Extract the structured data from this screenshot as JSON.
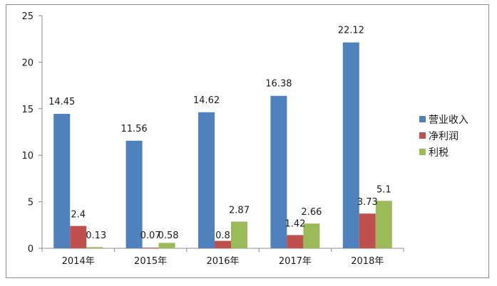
{
  "chart_data": {
    "type": "bar",
    "title": "",
    "xlabel": "",
    "ylabel": "",
    "categories": [
      "2014年",
      "2015年",
      "2016年",
      "2017年",
      "2018年"
    ],
    "ylim": [
      0,
      25
    ],
    "yticks": [
      0,
      5,
      10,
      15,
      20,
      25
    ],
    "grid": false,
    "legend_position": "right",
    "series": [
      {
        "name": "营业收入",
        "color": "#4f81bd",
        "values": [
          14.45,
          11.56,
          14.62,
          16.38,
          22.12
        ]
      },
      {
        "name": "净利润",
        "color": "#c0504d",
        "values": [
          2.4,
          0.07,
          0.8,
          1.42,
          3.73
        ]
      },
      {
        "name": "利税",
        "color": "#9bbb59",
        "values": [
          0.13,
          0.58,
          2.87,
          2.66,
          5.1
        ]
      }
    ]
  }
}
